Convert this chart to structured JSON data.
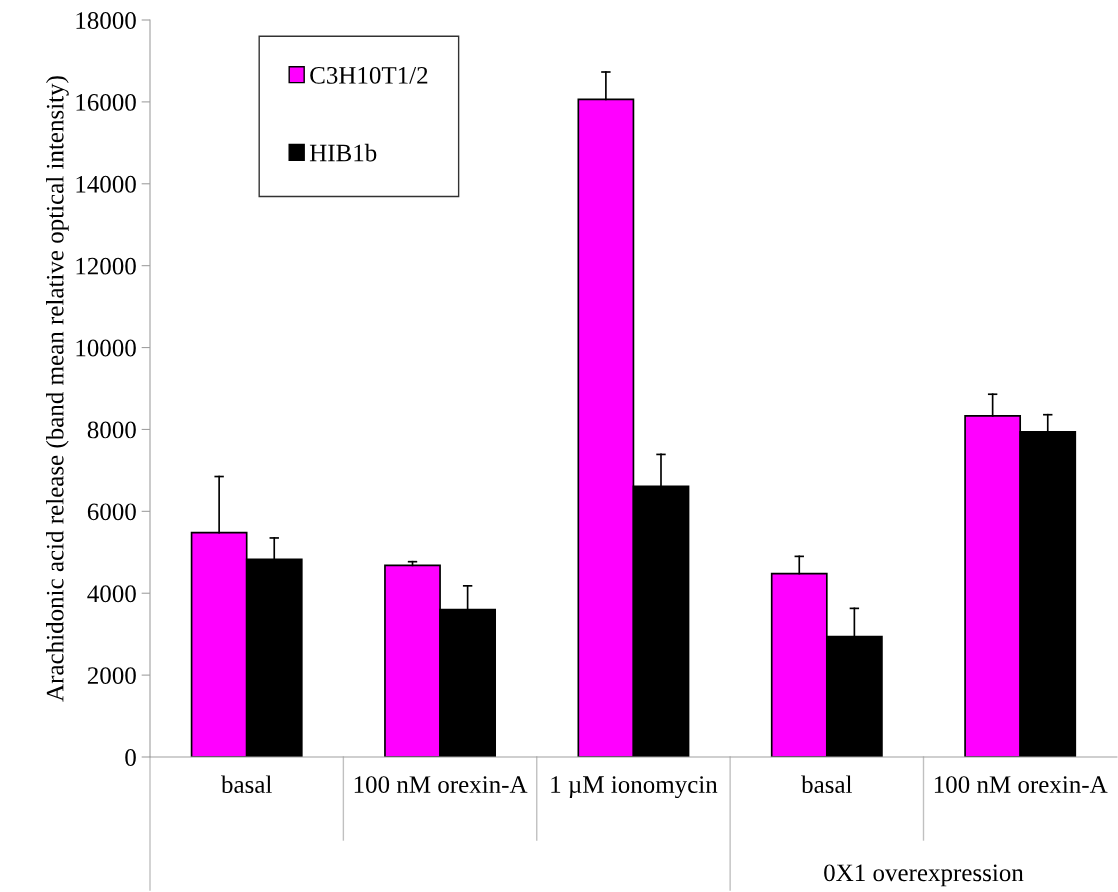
{
  "chart_data": {
    "type": "bar",
    "ylabel": "Arachidonic acid release (band mean relative optical intensity)",
    "categories": [
      "basal",
      "100 nM orexin-A",
      "1 µM ionomycin",
      "basal",
      "100 nM orexin-A"
    ],
    "series": [
      {
        "name": "C3H10T1/2",
        "color": "#ff00ff",
        "values": [
          5480,
          4680,
          16060,
          4480,
          8330
        ],
        "errors": [
          [
            5480,
            6850
          ],
          [
            4680,
            4770
          ],
          [
            16060,
            16730
          ],
          [
            4480,
            4900
          ],
          [
            8330,
            8860
          ]
        ]
      },
      {
        "name": "HIB1b",
        "color": "#000000",
        "values": [
          4830,
          3600,
          6610,
          2940,
          7940
        ],
        "errors": [
          [
            4830,
            5350
          ],
          [
            3600,
            4180
          ],
          [
            6610,
            7390
          ],
          [
            2940,
            3630
          ],
          [
            7940,
            8360
          ]
        ]
      }
    ],
    "annotations": [
      "0X1 overexpression"
    ],
    "ylim": [
      0,
      18000
    ],
    "yticks": [
      0,
      2000,
      4000,
      6000,
      8000,
      10000,
      12000,
      14000,
      16000,
      18000
    ],
    "grid": false,
    "legend": "top left"
  }
}
